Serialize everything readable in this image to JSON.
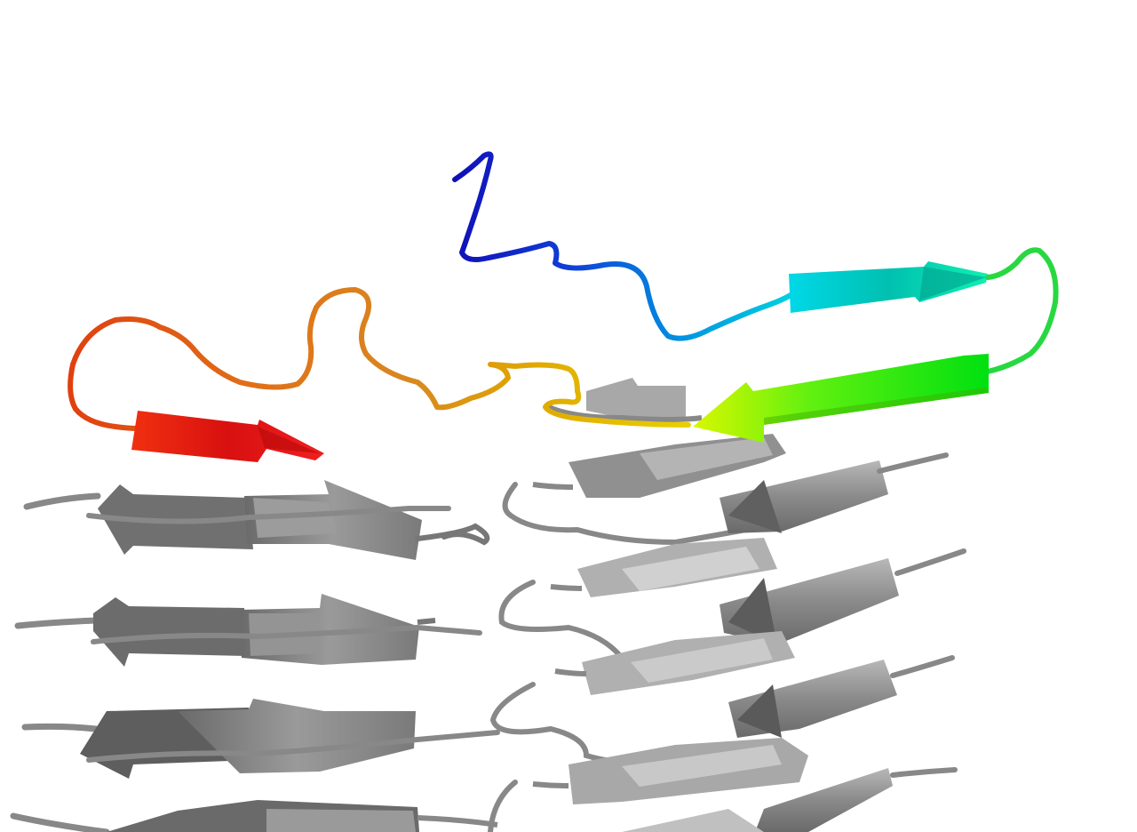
{
  "scene": {
    "subject": "protein-cartoon-render",
    "background": "#ffffff",
    "highlighted_chain": {
      "coloring": "rainbow",
      "colors": [
        "#1010c8",
        "#0070e0",
        "#00c8e0",
        "#10e8a8",
        "#20e060",
        "#70f010",
        "#d8f000",
        "#e8c000",
        "#e08820",
        "#e04810",
        "#e01818"
      ]
    },
    "stacked_chains": {
      "color": "#8c8c8c",
      "dark": "#555555",
      "light": "#c4c4c4"
    }
  }
}
